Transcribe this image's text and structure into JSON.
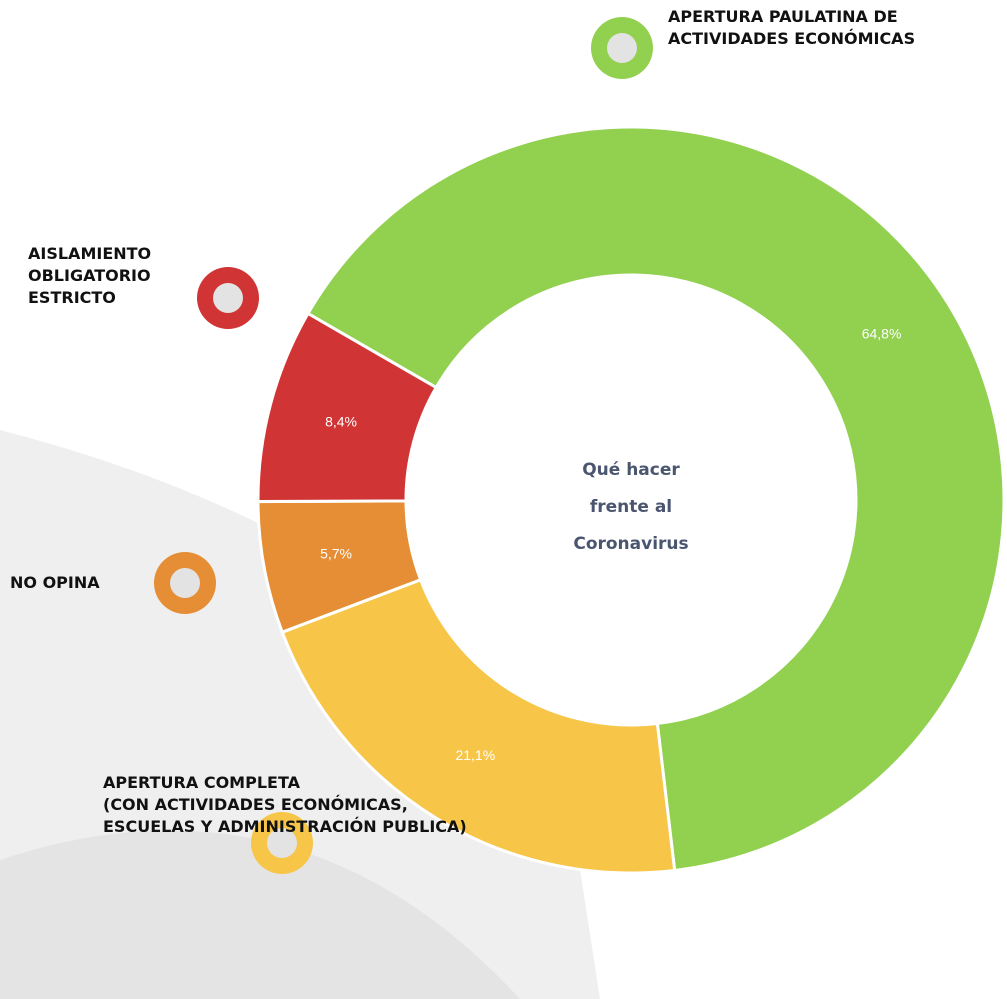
{
  "chart_data": {
    "type": "pie",
    "title": "Qué hacer\nfrente al\nCoronavirus",
    "categories": [
      "APERTURA PAULATINA DE\nACTIVIDADES ECONÓMICAS",
      "APERTURA COMPLETA\n(CON ACTIVIDADES ECONÓMICAS,\nESCUELAS Y ADMINISTRACIÓN PUBLICA)",
      "NO OPINA",
      "AISLAMIENTO\nOBLIGATORIO\nESTRICTO"
    ],
    "values": [
      64.8,
      21.1,
      5.7,
      8.4
    ],
    "value_labels": [
      "64,8%",
      "21,1%",
      "5,7%",
      "8,4%"
    ],
    "colors": [
      "#92d050",
      "#f7c548",
      "#e58e35",
      "#d13434"
    ]
  }
}
